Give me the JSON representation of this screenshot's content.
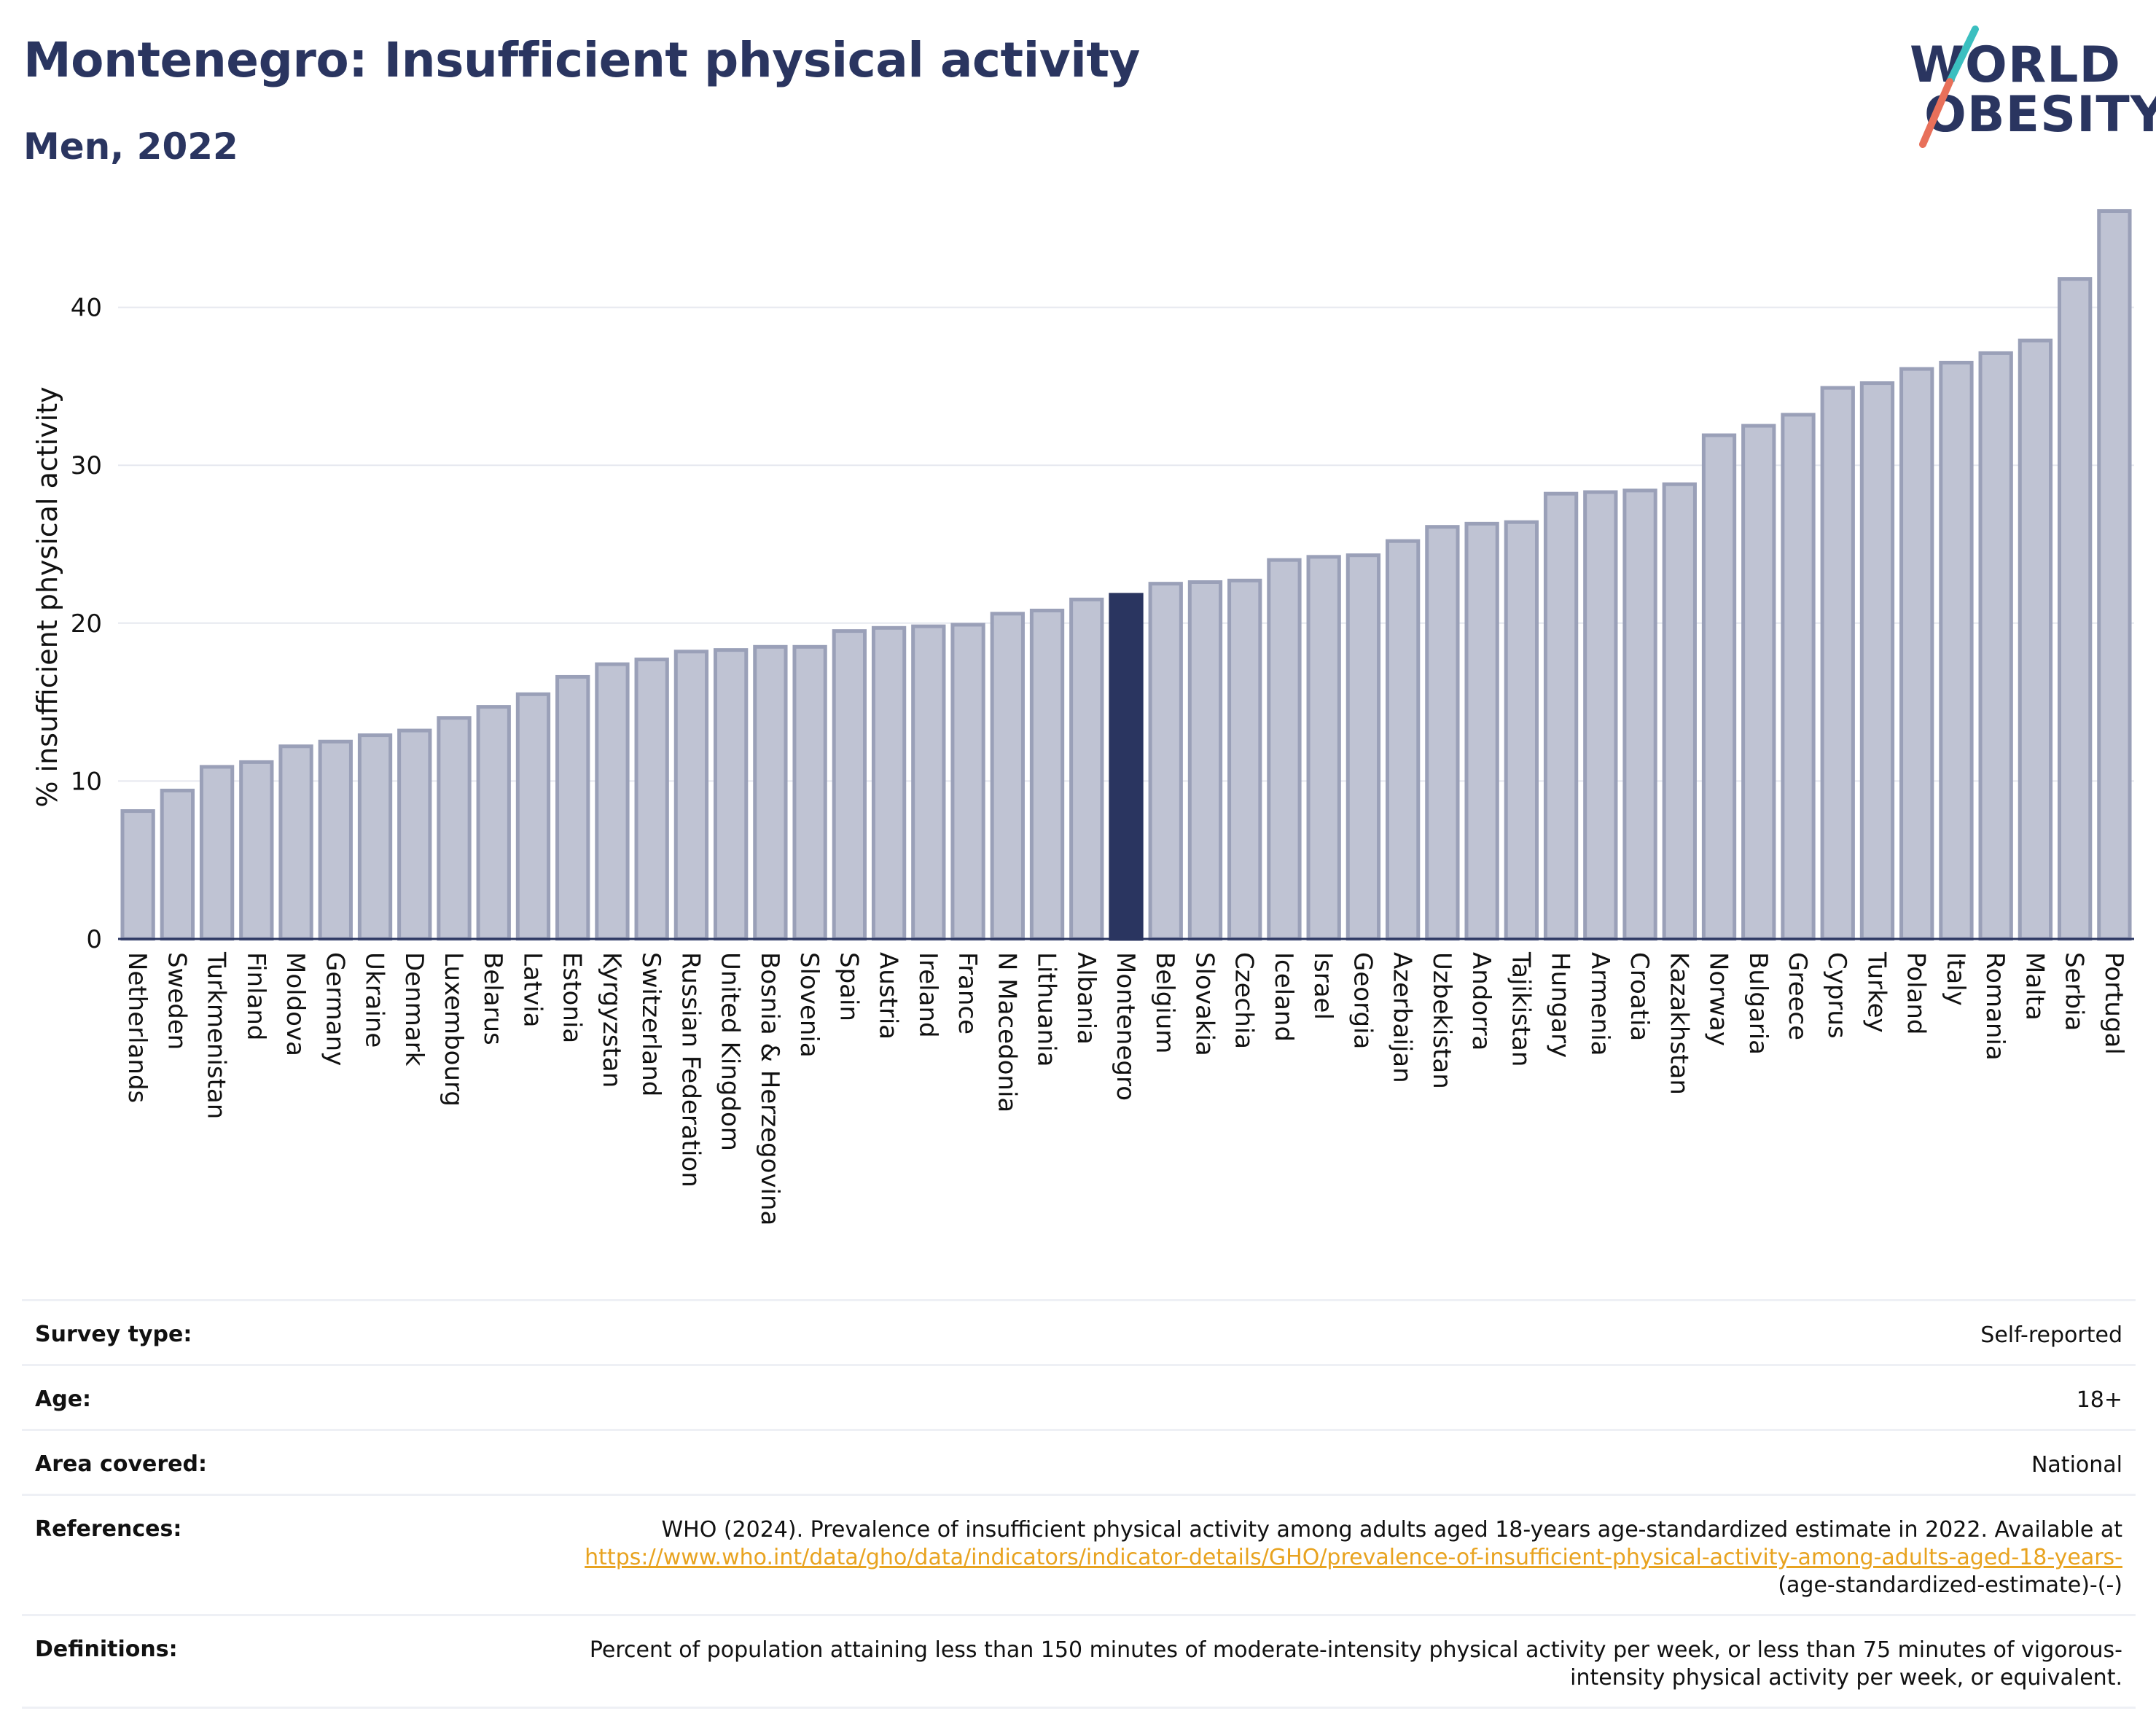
{
  "title": "Montenegro: Insufficient physical activity",
  "subtitle": "Men, 2022",
  "logo": {
    "line1": "WORLD",
    "line2": "OBESITY",
    "slash_colors": [
      "#3bbfc0",
      "#e8705a"
    ]
  },
  "colors": {
    "highlight": "#2a3560",
    "bar": "#bfc3d3",
    "bar_stroke": "#9aa0b8",
    "text": "#2a3560"
  },
  "chart_data": {
    "type": "bar",
    "ylabel": "% insufficient physical activity",
    "xlabel": "",
    "ylim": [
      0,
      47
    ],
    "yticks": [
      0,
      10,
      20,
      30,
      40
    ],
    "grid": true,
    "highlight": "Montenegro",
    "categories": [
      "Netherlands",
      "Sweden",
      "Turkmenistan",
      "Finland",
      "Moldova",
      "Germany",
      "Ukraine",
      "Denmark",
      "Luxembourg",
      "Belarus",
      "Latvia",
      "Estonia",
      "Kyrgyzstan",
      "Switzerland",
      "Russian Federation",
      "United Kingdom",
      "Bosnia & Herzegovina",
      "Slovenia",
      "Spain",
      "Austria",
      "Ireland",
      "France",
      "N Macedonia",
      "Lithuania",
      "Albania",
      "Montenegro",
      "Belgium",
      "Slovakia",
      "Czechia",
      "Iceland",
      "Israel",
      "Georgia",
      "Azerbaijan",
      "Uzbekistan",
      "Andorra",
      "Tajikistan",
      "Hungary",
      "Armenia",
      "Croatia",
      "Kazakhstan",
      "Norway",
      "Bulgaria",
      "Greece",
      "Cyprus",
      "Turkey",
      "Poland",
      "Italy",
      "Romania",
      "Malta",
      "Serbia",
      "Portugal"
    ],
    "values": [
      8.1,
      9.4,
      10.9,
      11.2,
      12.2,
      12.5,
      12.9,
      13.2,
      14.0,
      14.7,
      15.5,
      16.6,
      17.4,
      17.7,
      18.2,
      18.3,
      18.5,
      18.5,
      19.5,
      19.7,
      19.8,
      19.9,
      20.6,
      20.8,
      21.5,
      21.8,
      22.5,
      22.6,
      22.7,
      24.0,
      24.2,
      24.3,
      25.2,
      26.1,
      26.3,
      26.4,
      28.2,
      28.3,
      28.4,
      28.8,
      31.9,
      32.5,
      33.2,
      34.9,
      35.2,
      36.1,
      36.5,
      37.1,
      37.9,
      41.8,
      46.1
    ]
  },
  "meta": {
    "survey_type_label": "Survey type:",
    "survey_type_value": "Self-reported",
    "age_label": "Age:",
    "age_value": "18+",
    "area_label": "Area covered:",
    "area_value": "National",
    "references_label": "References:",
    "references_text": "WHO (2024). Prevalence of insufficient physical activity among adults aged 18-years age-standardized estimate in 2022. Available at",
    "references_link": "https://www.who.int/data/gho/data/indicators/indicator-details/GHO/prevalence-of-insufficient-physical-activity-among-adults-aged-18-years-",
    "references_suffix": "(age-standardized-estimate)-(-)",
    "definitions_label": "Definitions:",
    "definitions_text": "Percent of population attaining less than 150 minutes of moderate-intensity physical activity per week, or less than 75 minutes of vigorous-intensity physical activity per week, or equivalent."
  }
}
